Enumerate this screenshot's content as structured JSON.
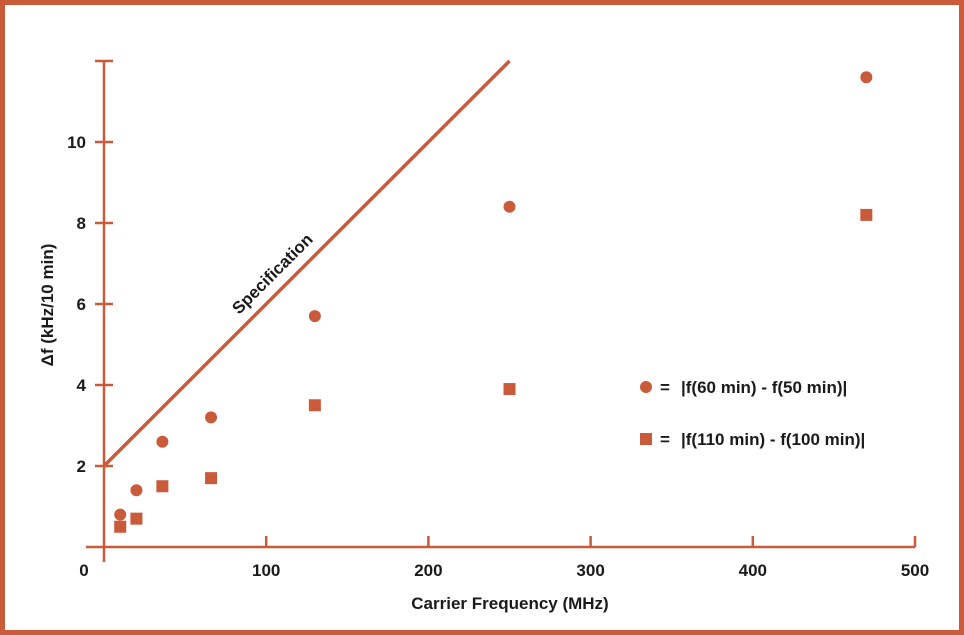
{
  "chart_data": {
    "type": "scatter",
    "title": "",
    "xlabel": "Carrier Frequency (MHz)",
    "ylabel": "Δf (kHz/10 min)",
    "xlim": [
      0,
      500
    ],
    "ylim": [
      0,
      12
    ],
    "x_ticks": [
      {
        "value": 0,
        "label": "0"
      },
      {
        "value": 100,
        "label": "100"
      },
      {
        "value": 200,
        "label": "200"
      },
      {
        "value": 300,
        "label": "300"
      },
      {
        "value": 400,
        "label": "400"
      },
      {
        "value": 500,
        "label": "500"
      }
    ],
    "y_ticks": [
      {
        "value": 2,
        "label": "2"
      },
      {
        "value": 4,
        "label": "4"
      },
      {
        "value": 6,
        "label": "6"
      },
      {
        "value": 8,
        "label": "8"
      },
      {
        "value": 10,
        "label": "10"
      },
      {
        "value": 12,
        "label": ""
      }
    ],
    "grid": false,
    "legend_position": "right",
    "accent_color": "#c95a3a",
    "marker_color": "#c95a3a",
    "series": [
      {
        "name": "|f(60 min) - f(50 min)|",
        "marker": "circle",
        "points": [
          {
            "x": 10,
            "y": 0.8
          },
          {
            "x": 20,
            "y": 1.4
          },
          {
            "x": 36,
            "y": 2.6
          },
          {
            "x": 66,
            "y": 3.2
          },
          {
            "x": 130,
            "y": 5.7
          },
          {
            "x": 250,
            "y": 8.4
          },
          {
            "x": 470,
            "y": 11.6
          }
        ]
      },
      {
        "name": "|f(110 min) - f(100 min)|",
        "marker": "square",
        "points": [
          {
            "x": 10,
            "y": 0.5
          },
          {
            "x": 20,
            "y": 0.7
          },
          {
            "x": 36,
            "y": 1.5
          },
          {
            "x": 66,
            "y": 1.7
          },
          {
            "x": 130,
            "y": 3.5
          },
          {
            "x": 250,
            "y": 3.9
          },
          {
            "x": 470,
            "y": 8.2
          }
        ]
      }
    ],
    "specification_line": {
      "label": "Specification",
      "points": [
        {
          "x": 0,
          "y": 2.0
        },
        {
          "x": 250,
          "y": 12.0
        }
      ]
    },
    "legend": [
      {
        "marker": "circle",
        "prefix": "● =",
        "text": "|f(60 min) - f(50 min)|"
      },
      {
        "marker": "square",
        "prefix": "■ =",
        "text": "|f(110 min) - f(100 min)|"
      }
    ]
  }
}
